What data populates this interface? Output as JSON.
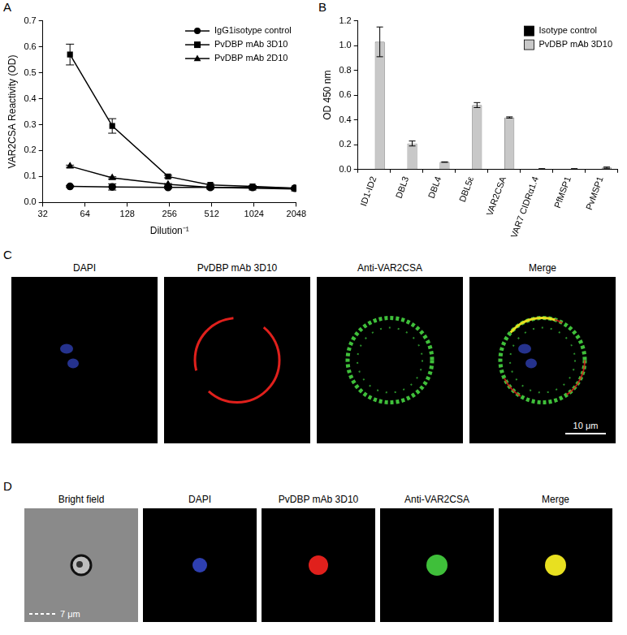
{
  "chart_data": [
    {
      "panel": "A",
      "type": "line",
      "x_label": "Dilution⁻¹",
      "y_label": "VAR2CSA Reactivity (OD)",
      "log": "x",
      "grid": false,
      "legend": "upper right",
      "x": [
        50,
        100,
        250,
        500,
        1000,
        2000
      ],
      "xlim": [
        32,
        2048
      ],
      "xticks": [
        32,
        64,
        128,
        256,
        512,
        1024,
        2048
      ],
      "ylim": [
        0,
        0.7
      ],
      "yticks": [
        {
          "value": 0,
          "label": "0.0"
        },
        0.1,
        0.2,
        0.3,
        0.4,
        0.5,
        0.6,
        0.7
      ],
      "series": [
        {
          "name": "IgG1isotype control",
          "color": "#000000",
          "marker": "circle",
          "line_style": "solid",
          "values": [
            0.062,
            0.06,
            0.058,
            0.058,
            0.058,
            0.055
          ],
          "errors": [
            0.003,
            0.012,
            0.004,
            0.003,
            0.003,
            0.003
          ]
        },
        {
          "name": "PvDBP mAb 3D10",
          "color": "#000000",
          "marker": "square",
          "line_style": "solid",
          "values": [
            0.57,
            0.295,
            0.1,
            0.068,
            0.062,
            0.055
          ],
          "errors": [
            0.04,
            0.028,
            0.005,
            0.004,
            0.003,
            0.003
          ]
        },
        {
          "name": "PvDBP mAb 2D10",
          "color": "#000000",
          "marker": "triangle",
          "line_style": "solid",
          "values": [
            0.14,
            0.095,
            0.07,
            0.058,
            0.055,
            0.052
          ],
          "errors": [
            0.004,
            0.004,
            0.003,
            0.003,
            0.003,
            0.003
          ]
        }
      ]
    },
    {
      "panel": "B",
      "type": "bar",
      "y_label": "OD 450 nm",
      "grid": false,
      "legend": "upper right",
      "categories": [
        "ID1-ID2",
        "DBL3",
        "DBL4",
        "DBL5ε",
        "VAR2CSA",
        "VAR7 CIDRα1.4",
        "PfMSP1",
        "PvMSP1"
      ],
      "ylim": [
        0,
        1.2
      ],
      "yticks": [
        {
          "value": 0,
          "label": "0.0"
        },
        0.2,
        0.4,
        0.6,
        0.8,
        {
          "value": 1,
          "label": "1.0"
        },
        1.2
      ],
      "series": [
        {
          "name": "Isotype control",
          "color": "#000000",
          "values": [
            0.005,
            0.003,
            0.002,
            0.005,
            0.003,
            0.005,
            0.003,
            0.003
          ]
        },
        {
          "name": "PvDBP mAb 3D10",
          "color": "#c8c8c8",
          "values": [
            1.03,
            0.21,
            0.06,
            0.52,
            0.42,
            0.005,
            0.005,
            0.015
          ],
          "errors": [
            0.12,
            0.02,
            0.002,
            0.02,
            0.005,
            0.002,
            0.002,
            0.005
          ]
        }
      ]
    }
  ],
  "images": [
    {
      "panel": "C",
      "columns": [
        "DAPI",
        "PvDBP mAb 3D10",
        "Anti-VAR2CSA",
        "Merge"
      ],
      "scale_bar": "10 μm"
    },
    {
      "panel": "D",
      "columns": [
        "Bright field",
        "DAPI",
        "PvDBP mAb 3D10",
        "Anti-VAR2CSA",
        "Merge"
      ],
      "scale_bar": "7 μm"
    }
  ]
}
